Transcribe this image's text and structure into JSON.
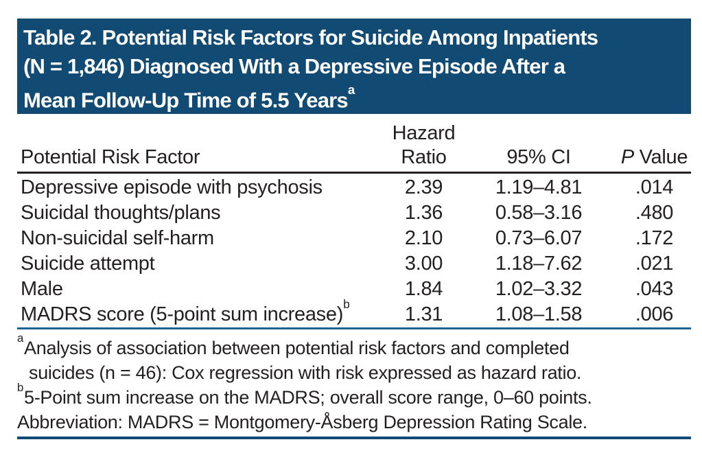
{
  "banner": {
    "title_lines": [
      "Table 2. Potential Risk Factors for Suicide Among Inpatients",
      "(N = 1,846) Diagnosed With a Depressive Episode After a",
      "Mean Follow-Up Time of 5.5 Years"
    ],
    "title_superscript": "a"
  },
  "table": {
    "header": {
      "factor": "Potential Risk Factor",
      "hazard_ratio_line1": "Hazard",
      "hazard_ratio_line2": "Ratio",
      "ci": "95% CI",
      "p_italic": "P",
      "p_rest": "Value"
    },
    "rows": [
      {
        "factor": "Depressive episode with psychosis",
        "factor_sup": "",
        "hazard_ratio": "2.39",
        "ci_95": "1.19–4.81",
        "p_value": ".014"
      },
      {
        "factor": "Suicidal thoughts/plans",
        "factor_sup": "",
        "hazard_ratio": "1.36",
        "ci_95": "0.58–3.16",
        "p_value": ".480"
      },
      {
        "factor": "Non-suicidal self-harm",
        "factor_sup": "",
        "hazard_ratio": "2.10",
        "ci_95": "0.73–6.07",
        "p_value": ".172"
      },
      {
        "factor": "Suicide attempt",
        "factor_sup": "",
        "hazard_ratio": "3.00",
        "ci_95": "1.18–7.62",
        "p_value": ".021"
      },
      {
        "factor": "Male",
        "factor_sup": "",
        "hazard_ratio": "1.84",
        "ci_95": "1.02–3.32",
        "p_value": ".043"
      },
      {
        "factor": "MADRS score (5-point sum increase)",
        "factor_sup": "b",
        "hazard_ratio": "1.31",
        "ci_95": "1.08–1.58",
        "p_value": ".006"
      }
    ]
  },
  "footnotes": {
    "lines": [
      {
        "sup": "a",
        "text": "Analysis of association between potential risk factors and completed",
        "indented": false
      },
      {
        "sup": "",
        "text": "suicides (n = 46): Cox regression with risk expressed as hazard ratio.",
        "indented": true
      },
      {
        "sup": "b",
        "text": "5-Point sum increase on the MADRS; overall score range, 0–60 points.",
        "indented": false
      },
      {
        "sup": "",
        "text": "Abbreviation: MADRS = Montgomery-Åsberg Depression Rating Scale.",
        "indented": false
      }
    ]
  },
  "colors": {
    "banner_background": "#114a73",
    "banner_text": "#ffffff",
    "body_text": "#231f20",
    "header_rule": "#231f20",
    "mid_rule": "#1a648f",
    "bottom_rule": "#114a73"
  }
}
